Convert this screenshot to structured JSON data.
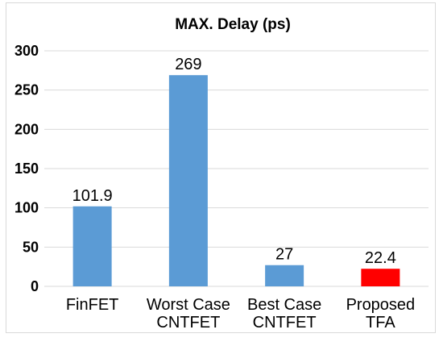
{
  "chart_data": {
    "type": "bar",
    "title": "MAX. Delay (ps)",
    "categories": [
      [
        "FinFET"
      ],
      [
        "Worst  Case",
        "CNTFET"
      ],
      [
        "Best  Case",
        "CNTFET"
      ],
      [
        "Proposed",
        "TFA"
      ]
    ],
    "values": [
      101.9,
      269,
      27,
      22.4
    ],
    "value_labels": [
      "101.9",
      "269",
      "27",
      "22.4"
    ],
    "bar_colors": [
      "#5b9bd5",
      "#5b9bd5",
      "#5b9bd5",
      "#ff0000"
    ],
    "ylim": [
      0,
      300
    ],
    "yticks": [
      0,
      50,
      100,
      150,
      200,
      250,
      300
    ],
    "grid": true,
    "legend": false
  }
}
